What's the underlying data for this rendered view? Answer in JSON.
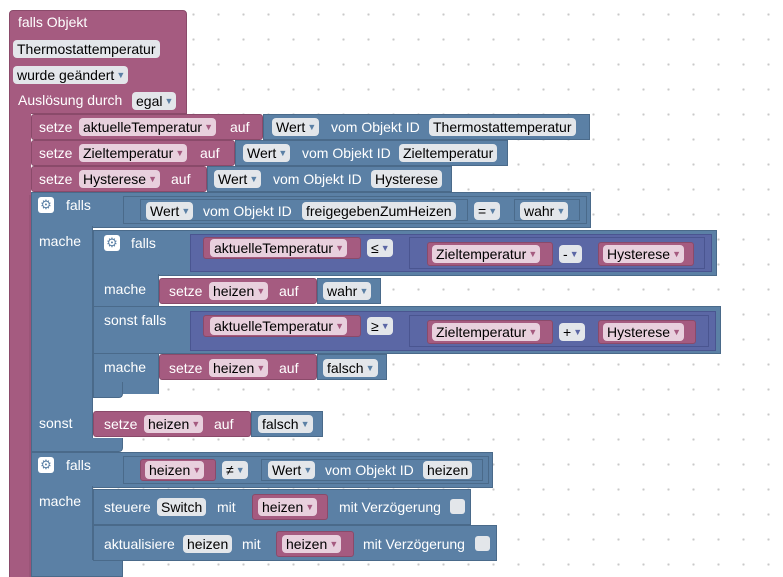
{
  "event": {
    "title": "falls Objekt",
    "object": "Thermostattemperatur",
    "condition": "wurde geändert",
    "trigger_label": "Auslösung durch",
    "trigger_value": "egal"
  },
  "sets": [
    {
      "setze": "setze",
      "var": "aktuelleTemperatur",
      "auf": "auf",
      "val": "Wert",
      "vom": "vom Objekt ID",
      "obj": "Thermostattemperatur"
    },
    {
      "setze": "setze",
      "var": "Zieltemperatur",
      "auf": "auf",
      "val": "Wert",
      "vom": "vom Objekt ID",
      "obj": "Zieltemperatur"
    },
    {
      "setze": "setze",
      "var": "Hysterese",
      "auf": "auf",
      "val": "Wert",
      "vom": "vom Objekt ID",
      "obj": "Hysterese"
    }
  ],
  "if1": {
    "falls": "falls",
    "val": "Wert",
    "vom": "vom Objekt ID",
    "obj": "freigegebenZumHeizen",
    "op": "=",
    "rhs": "wahr",
    "mache": "mache",
    "sonst": "sonst"
  },
  "if2": {
    "falls": "falls",
    "lhs": "aktuelleTemperatur",
    "op": "≤",
    "a": "Zieltemperatur",
    "minus": "-",
    "b": "Hysterese",
    "mache": "mache",
    "set_word": "setze",
    "set_var": "heizen",
    "auf": "auf",
    "set_val": "wahr",
    "sonst_falls": "sonst falls",
    "lhs2": "aktuelleTemperatur",
    "op2": "≥",
    "a2": "Zieltemperatur",
    "plus": "+",
    "b2": "Hysterese",
    "mache2": "mache",
    "set_word2": "setze",
    "set_var2": "heizen",
    "auf2": "auf",
    "set_val2": "falsch"
  },
  "else_set": {
    "setze": "setze",
    "var": "heizen",
    "auf": "auf",
    "val": "falsch"
  },
  "if3": {
    "falls": "falls",
    "lhs": "heizen",
    "op": "≠",
    "val": "Wert",
    "vom": "vom Objekt ID",
    "obj": "heizen",
    "mache": "mache",
    "control": "steuere",
    "control_obj": "Switch",
    "mit": "mit",
    "control_var": "heizen",
    "delay": "mit Verzögerung",
    "update": "aktualisiere",
    "update_obj": "heizen",
    "mit2": "mit",
    "update_var": "heizen",
    "delay2": "mit Verzögerung"
  },
  "colors": {
    "event": "#a55b80",
    "object": "#5b80a5",
    "logic": "#5b67a5",
    "workspace": "#ffffff"
  }
}
